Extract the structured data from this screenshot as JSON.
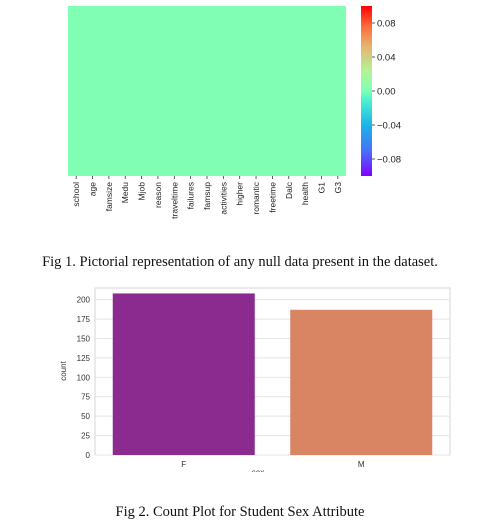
{
  "chart_data": [
    {
      "type": "heatmap",
      "columns": [
        "school",
        "age",
        "famsize",
        "Medu",
        "Mjob",
        "reason",
        "traveltime",
        "failures",
        "famsup",
        "activities",
        "higher",
        "romantic",
        "freetime",
        "Dalc",
        "health",
        "G1",
        "G3"
      ],
      "fill_value": 0.0,
      "cell_color": "#80ffb4",
      "colormap": "rainbow",
      "colorbar": {
        "vmin": -0.1,
        "vmax": 0.1,
        "ticks": [
          0.08,
          0.04,
          0.0,
          -0.04,
          -0.08
        ],
        "tick_labels": [
          "0.08",
          "0.04",
          "0.00",
          "−0.04",
          "−0.08"
        ]
      }
    },
    {
      "type": "bar",
      "categories": [
        "F",
        "M"
      ],
      "values": [
        208,
        187
      ],
      "colors": [
        "#8b2a8f",
        "#d98463"
      ],
      "xlabel": "sex",
      "ylabel": "count",
      "ylim": [
        0,
        215
      ],
      "yticks": [
        0,
        25,
        50,
        75,
        100,
        125,
        150,
        175,
        200
      ],
      "grid": true
    }
  ],
  "captions": {
    "fig1": "Fig 1. Pictorial representation of any null data present in the dataset.",
    "fig2": "Fig 2. Count Plot for Student Sex Attribute"
  }
}
